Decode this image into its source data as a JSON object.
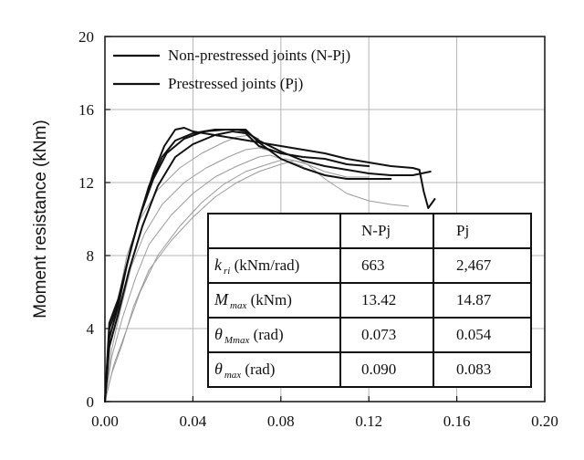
{
  "chart_data": {
    "type": "line",
    "xlabel": "",
    "ylabel": "Moment resistance (kNm)",
    "xlim": [
      0,
      0.2
    ],
    "ylim": [
      0,
      20
    ],
    "x_ticks": [
      "0.00",
      "0.04",
      "0.08",
      "0.12",
      "0.16",
      "0.20"
    ],
    "y_ticks": [
      "0",
      "4",
      "8",
      "12",
      "16",
      "20"
    ],
    "grid": true,
    "legend_position": "top-left",
    "legend": [
      {
        "label": "Non-prestressed joints (N-Pj)",
        "color": "#111111"
      },
      {
        "label": "Prestressed joints (Pj)",
        "color": "#111111"
      }
    ],
    "series": [
      {
        "group": "N-Pj",
        "color": "#9a9a9a",
        "stroke": 1,
        "points": [
          [
            0,
            0
          ],
          [
            0.003,
            1.5
          ],
          [
            0.008,
            3.2
          ],
          [
            0.013,
            5.2
          ],
          [
            0.02,
            7.2
          ],
          [
            0.03,
            8.8
          ],
          [
            0.04,
            10.1
          ],
          [
            0.05,
            11.2
          ],
          [
            0.06,
            12.0
          ],
          [
            0.07,
            12.6
          ],
          [
            0.08,
            13.0
          ],
          [
            0.086,
            13.2
          ],
          [
            0.092,
            13.0
          ],
          [
            0.1,
            12.2
          ],
          [
            0.11,
            11.4
          ],
          [
            0.12,
            11.0
          ],
          [
            0.13,
            10.8
          ],
          [
            0.138,
            10.7
          ]
        ]
      },
      {
        "group": "N-Pj",
        "color": "#9a9a9a",
        "stroke": 1,
        "points": [
          [
            0,
            0
          ],
          [
            0.004,
            2.0
          ],
          [
            0.01,
            4.0
          ],
          [
            0.016,
            6.0
          ],
          [
            0.024,
            8.0
          ],
          [
            0.034,
            9.6
          ],
          [
            0.044,
            10.9
          ],
          [
            0.054,
            11.9
          ],
          [
            0.064,
            12.6
          ],
          [
            0.074,
            13.0
          ],
          [
            0.082,
            13.3
          ],
          [
            0.09,
            13.1
          ],
          [
            0.1,
            12.6
          ],
          [
            0.11,
            12.3
          ],
          [
            0.12,
            12.3
          ]
        ]
      },
      {
        "group": "N-Pj",
        "color": "#9a9a9a",
        "stroke": 1,
        "points": [
          [
            0,
            0
          ],
          [
            0.003,
            2.4
          ],
          [
            0.008,
            4.6
          ],
          [
            0.014,
            6.8
          ],
          [
            0.02,
            8.6
          ],
          [
            0.03,
            10.2
          ],
          [
            0.04,
            11.4
          ],
          [
            0.05,
            12.3
          ],
          [
            0.06,
            12.9
          ],
          [
            0.07,
            13.4
          ],
          [
            0.075,
            13.5
          ],
          [
            0.08,
            13.3
          ],
          [
            0.09,
            12.9
          ]
        ]
      },
      {
        "group": "N-Pj",
        "color": "#9a9a9a",
        "stroke": 1,
        "points": [
          [
            0,
            0
          ],
          [
            0.003,
            2.8
          ],
          [
            0.007,
            5.0
          ],
          [
            0.012,
            7.4
          ],
          [
            0.018,
            9.2
          ],
          [
            0.026,
            10.8
          ],
          [
            0.036,
            12.0
          ],
          [
            0.046,
            12.8
          ],
          [
            0.056,
            13.4
          ],
          [
            0.064,
            13.8
          ],
          [
            0.07,
            13.9
          ],
          [
            0.076,
            13.7
          ]
        ]
      },
      {
        "group": "N-Pj",
        "color": "#9a9a9a",
        "stroke": 1,
        "points": [
          [
            0,
            0
          ],
          [
            0.002,
            3.2
          ],
          [
            0.006,
            5.6
          ],
          [
            0.01,
            8.0
          ],
          [
            0.016,
            10.0
          ],
          [
            0.024,
            11.6
          ],
          [
            0.034,
            12.8
          ],
          [
            0.044,
            13.6
          ],
          [
            0.054,
            14.2
          ],
          [
            0.06,
            14.5
          ],
          [
            0.066,
            14.6
          ],
          [
            0.07,
            14.4
          ]
        ]
      },
      {
        "group": "Pj",
        "color": "#111111",
        "stroke": 2,
        "points": [
          [
            0,
            0
          ],
          [
            0.002,
            4.0
          ],
          [
            0.005,
            5.0
          ],
          [
            0.008,
            6.5
          ],
          [
            0.012,
            8.5
          ],
          [
            0.017,
            10.6
          ],
          [
            0.022,
            12.5
          ],
          [
            0.027,
            14.0
          ],
          [
            0.032,
            14.9
          ],
          [
            0.036,
            15.0
          ],
          [
            0.04,
            14.8
          ],
          [
            0.05,
            14.6
          ],
          [
            0.06,
            14.4
          ],
          [
            0.07,
            14.2
          ],
          [
            0.08,
            14.0
          ],
          [
            0.09,
            13.8
          ],
          [
            0.1,
            13.6
          ],
          [
            0.11,
            13.3
          ],
          [
            0.12,
            13.1
          ],
          [
            0.13,
            12.9
          ],
          [
            0.14,
            12.8
          ],
          [
            0.143,
            12.7
          ],
          [
            0.145,
            11.5
          ],
          [
            0.147,
            10.6
          ],
          [
            0.15,
            11.1
          ]
        ]
      },
      {
        "group": "Pj",
        "color": "#111111",
        "stroke": 2,
        "points": [
          [
            0,
            0
          ],
          [
            0.002,
            3.5
          ],
          [
            0.006,
            5.2
          ],
          [
            0.01,
            7.5
          ],
          [
            0.015,
            9.8
          ],
          [
            0.02,
            11.8
          ],
          [
            0.026,
            13.4
          ],
          [
            0.032,
            14.3
          ],
          [
            0.04,
            14.7
          ],
          [
            0.05,
            14.9
          ],
          [
            0.06,
            14.9
          ],
          [
            0.064,
            14.8
          ],
          [
            0.07,
            14.3
          ],
          [
            0.08,
            13.7
          ],
          [
            0.09,
            13.2
          ],
          [
            0.1,
            12.9
          ],
          [
            0.11,
            12.7
          ],
          [
            0.12,
            12.5
          ],
          [
            0.13,
            12.4
          ],
          [
            0.14,
            12.4
          ],
          [
            0.148,
            12.6
          ]
        ]
      },
      {
        "group": "Pj",
        "color": "#111111",
        "stroke": 2,
        "points": [
          [
            0,
            0
          ],
          [
            0.002,
            4.3
          ],
          [
            0.006,
            5.6
          ],
          [
            0.011,
            8.0
          ],
          [
            0.016,
            10.2
          ],
          [
            0.022,
            12.2
          ],
          [
            0.028,
            13.6
          ],
          [
            0.036,
            14.4
          ],
          [
            0.045,
            14.8
          ],
          [
            0.055,
            14.9
          ],
          [
            0.064,
            14.9
          ],
          [
            0.07,
            14.2
          ],
          [
            0.08,
            13.3
          ],
          [
            0.09,
            12.8
          ],
          [
            0.1,
            12.4
          ],
          [
            0.11,
            12.2
          ],
          [
            0.12,
            12.2
          ],
          [
            0.13,
            12.2
          ]
        ]
      },
      {
        "group": "Pj",
        "color": "#111111",
        "stroke": 2,
        "points": [
          [
            0,
            0
          ],
          [
            0.002,
            3.0
          ],
          [
            0.006,
            4.8
          ],
          [
            0.011,
            7.2
          ],
          [
            0.017,
            9.6
          ],
          [
            0.024,
            11.8
          ],
          [
            0.032,
            13.4
          ],
          [
            0.04,
            14.1
          ],
          [
            0.05,
            14.6
          ],
          [
            0.058,
            14.8
          ],
          [
            0.064,
            14.7
          ],
          [
            0.07,
            14.0
          ],
          [
            0.08,
            13.6
          ],
          [
            0.09,
            13.4
          ],
          [
            0.1,
            13.3
          ],
          [
            0.11,
            13.0
          ],
          [
            0.12,
            12.9
          ]
        ]
      }
    ]
  },
  "table": {
    "header": [
      "",
      "N-Pj",
      "Pj"
    ],
    "rows": [
      {
        "sym": "k",
        "sub": "ri",
        "unit": " (kNm/rad)",
        "npj": "663",
        "pj": "2,467"
      },
      {
        "sym": "M",
        "sub": "max",
        "unit": " (kNm)",
        "npj": "13.42",
        "pj": "14.87"
      },
      {
        "sym": "θ",
        "sub": "Mmax",
        "unit": " (rad)",
        "npj": "0.073",
        "pj": "0.054"
      },
      {
        "sym": "θ",
        "sub": "max",
        "unit": " (rad)",
        "npj": "0.090",
        "pj": "0.083"
      }
    ]
  }
}
